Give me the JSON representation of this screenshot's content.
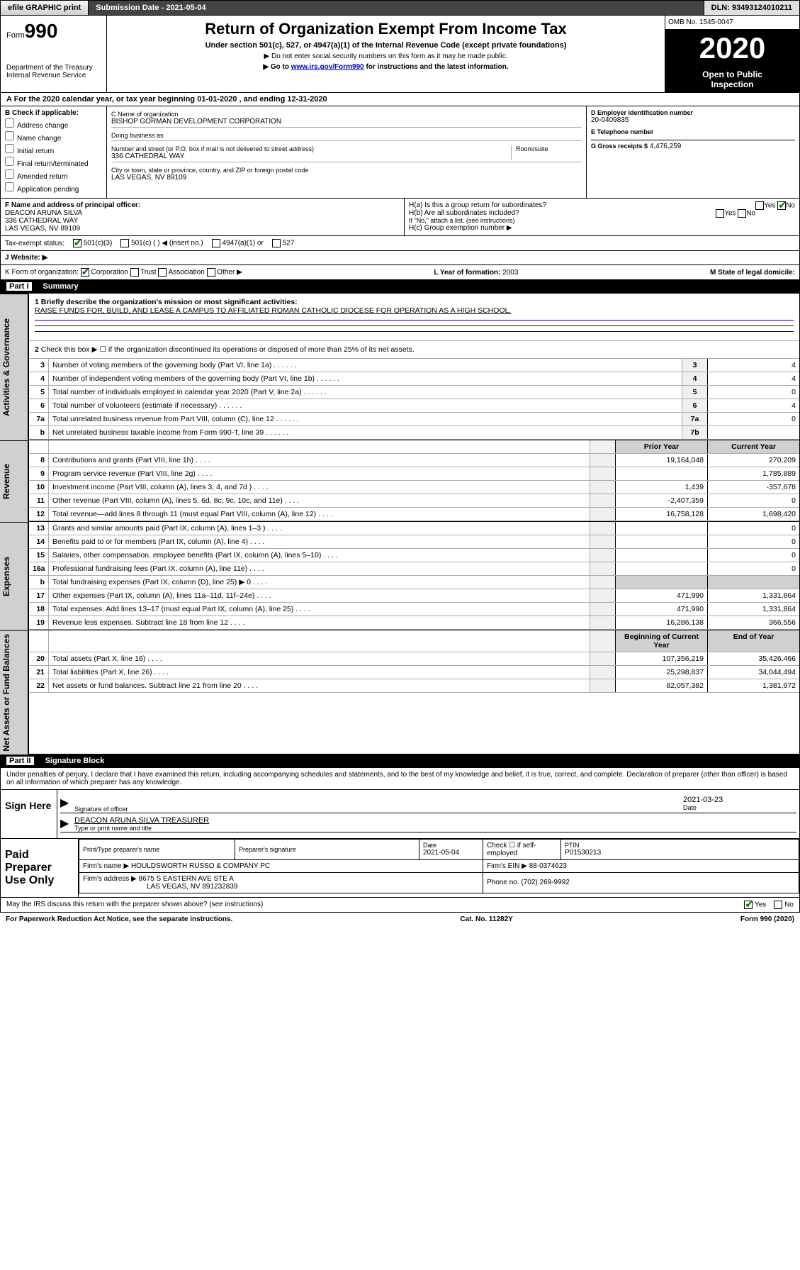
{
  "topbar": {
    "efile_label": "efile GRAPHIC print",
    "submission_label": "Submission Date - 2021-05-04",
    "dln_label": "DLN: 93493124010211"
  },
  "header": {
    "form_word": "Form",
    "form_number": "990",
    "dept1": "Department of the Treasury",
    "dept2": "Internal Revenue Service",
    "title": "Return of Organization Exempt From Income Tax",
    "subtitle": "Under section 501(c), 527, or 4947(a)(1) of the Internal Revenue Code (except private foundations)",
    "note1": "▶ Do not enter social security numbers on this form as it may be made public.",
    "note2_pre": "▶ Go to ",
    "note2_link": "www.irs.gov/Form990",
    "note2_post": " for instructions and the latest information.",
    "omb": "OMB No. 1545-0047",
    "year": "2020",
    "inspect1": "Open to Public",
    "inspect2": "Inspection"
  },
  "period": {
    "text_pre": "A For the 2020 calendar year, or tax year beginning ",
    "begin": "01-01-2020",
    "mid": " , and ending ",
    "end": "12-31-2020"
  },
  "checkif": {
    "header": "B Check if applicable:",
    "addr": "Address change",
    "name": "Name change",
    "initial": "Initial return",
    "final": "Final return/terminated",
    "amended": "Amended return",
    "app": "Application pending"
  },
  "org": {
    "name_lbl": "C Name of organization",
    "name": "BISHOP GORMAN DEVELOPMENT CORPORATION",
    "dba_lbl": "Doing business as",
    "dba": "",
    "addr_lbl": "Number and street (or P.O. box if mail is not delivered to street address)",
    "room_lbl": "Room/suite",
    "addr": "336 CATHEDRAL WAY",
    "city_lbl": "City or town, state or province, country, and ZIP or foreign postal code",
    "city": "LAS VEGAS, NV  89109"
  },
  "colD": {
    "ein_lbl": "D Employer identification number",
    "ein": "20-0409835",
    "tel_lbl": "E Telephone number",
    "tel": "",
    "gross_lbl": "G Gross receipts $",
    "gross": "4,476,259"
  },
  "officer": {
    "lbl": "F Name and address of principal officer:",
    "name": "DEACON ARUNA SILVA",
    "addr1": "336 CATHEDRAL WAY",
    "addr2": "LAS VEGAS, NV  89109"
  },
  "groupH": {
    "ha": "H(a) Is this a group return for subordinates?",
    "hb": "H(b) Are all subordinates included?",
    "hb_note": "If \"No,\" attach a list. (see instructions)",
    "hc": "H(c) Group exemption number ▶",
    "yes": "Yes",
    "no": "No"
  },
  "tax_status": {
    "lbl": "Tax-exempt status:",
    "c3": "501(c)(3)",
    "c_other": "501(c) ( ) ◀ (insert no.)",
    "a1": "4947(a)(1) or",
    "s527": "527"
  },
  "website": {
    "lbl": "J  Website: ▶",
    "val": ""
  },
  "korg": {
    "lbl": "K Form of organization:",
    "corp": "Corporation",
    "trust": "Trust",
    "assoc": "Association",
    "other": "Other ▶",
    "year_lbl": "L Year of formation:",
    "year": "2003",
    "state_lbl": "M State of legal domicile:",
    "state": ""
  },
  "partI": {
    "label": "Part I",
    "title": "Summary",
    "side_gov": "Activities & Governance",
    "side_rev": "Revenue",
    "side_exp": "Expenses",
    "side_net": "Net Assets or Fund Balances",
    "l1_lbl": "1  Briefly describe the organization's mission or most significant activities:",
    "l1_val": "RAISE FUNDS FOR, BUILD, AND LEASE A CAMPUS TO AFFILIATED ROMAN CATHOLIC DIOCESE FOR OPERATION AS A HIGH SCHOOL.",
    "l2": "Check this box ▶ ☐ if the organization discontinued its operations or disposed of more than 25% of its net assets.",
    "lines_gov": [
      {
        "n": "3",
        "d": "Number of voting members of the governing body (Part VI, line 1a)",
        "b": "3",
        "v": "4"
      },
      {
        "n": "4",
        "d": "Number of independent voting members of the governing body (Part VI, line 1b)",
        "b": "4",
        "v": "4"
      },
      {
        "n": "5",
        "d": "Total number of individuals employed in calendar year 2020 (Part V, line 2a)",
        "b": "5",
        "v": "0"
      },
      {
        "n": "6",
        "d": "Total number of volunteers (estimate if necessary)",
        "b": "6",
        "v": "4"
      },
      {
        "n": "7a",
        "d": "Total unrelated business revenue from Part VIII, column (C), line 12",
        "b": "7a",
        "v": "0"
      },
      {
        "n": "b",
        "d": "Net unrelated business taxable income from Form 990-T, line 39",
        "b": "7b",
        "v": ""
      }
    ],
    "hdr_prior": "Prior Year",
    "hdr_current": "Current Year",
    "lines_rev": [
      {
        "n": "8",
        "d": "Contributions and grants (Part VIII, line 1h)",
        "p": "19,164,048",
        "c": "270,209"
      },
      {
        "n": "9",
        "d": "Program service revenue (Part VIII, line 2g)",
        "p": "",
        "c": "1,785,889"
      },
      {
        "n": "10",
        "d": "Investment income (Part VIII, column (A), lines 3, 4, and 7d )",
        "p": "1,439",
        "c": "-357,678"
      },
      {
        "n": "11",
        "d": "Other revenue (Part VIII, column (A), lines 5, 6d, 8c, 9c, 10c, and 11e)",
        "p": "-2,407,359",
        "c": "0"
      },
      {
        "n": "12",
        "d": "Total revenue—add lines 8 through 11 (must equal Part VIII, column (A), line 12)",
        "p": "16,758,128",
        "c": "1,698,420"
      }
    ],
    "lines_exp": [
      {
        "n": "13",
        "d": "Grants and similar amounts paid (Part IX, column (A), lines 1–3 )",
        "p": "",
        "c": "0"
      },
      {
        "n": "14",
        "d": "Benefits paid to or for members (Part IX, column (A), line 4)",
        "p": "",
        "c": "0"
      },
      {
        "n": "15",
        "d": "Salaries, other compensation, employee benefits (Part IX, column (A), lines 5–10)",
        "p": "",
        "c": "0"
      },
      {
        "n": "16a",
        "d": "Professional fundraising fees (Part IX, column (A), line 11e)",
        "p": "",
        "c": "0"
      },
      {
        "n": "b",
        "d": "Total fundraising expenses (Part IX, column (D), line 25) ▶ 0",
        "p": "",
        "c": "",
        "gray": true
      },
      {
        "n": "17",
        "d": "Other expenses (Part IX, column (A), lines 11a–11d, 11f–24e)",
        "p": "471,990",
        "c": "1,331,864"
      },
      {
        "n": "18",
        "d": "Total expenses. Add lines 13–17 (must equal Part IX, column (A), line 25)",
        "p": "471,990",
        "c": "1,331,864"
      },
      {
        "n": "19",
        "d": "Revenue less expenses. Subtract line 18 from line 12",
        "p": "16,286,138",
        "c": "366,556"
      }
    ],
    "hdr_begin": "Beginning of Current Year",
    "hdr_end": "End of Year",
    "lines_net": [
      {
        "n": "20",
        "d": "Total assets (Part X, line 16)",
        "p": "107,356,219",
        "c": "35,426,466"
      },
      {
        "n": "21",
        "d": "Total liabilities (Part X, line 26)",
        "p": "25,298,837",
        "c": "34,044,494"
      },
      {
        "n": "22",
        "d": "Net assets or fund balances. Subtract line 21 from line 20",
        "p": "82,057,382",
        "c": "1,381,972"
      }
    ]
  },
  "partII": {
    "label": "Part II",
    "title": "Signature Block",
    "perjury": "Under penalties of perjury, I declare that I have examined this return, including accompanying schedules and statements, and to the best of my knowledge and belief, it is true, correct, and complete. Declaration of preparer (other than officer) is based on all information of which preparer has any knowledge.",
    "sign_here": "Sign Here",
    "sig_officer": "Signature of officer",
    "sig_date": "2021-03-23",
    "date_lbl": "Date",
    "officer_name": "DEACON ARUNA SILVA  TREASURER",
    "type_name": "Type or print name and title",
    "paid_lbl": "Paid Preparer Use Only",
    "print_name_lbl": "Print/Type preparer's name",
    "print_name": "",
    "prep_sig_lbl": "Preparer's signature",
    "prep_date_lbl": "Date",
    "prep_date": "2021-05-04",
    "self_emp": "Check ☐ if self-employed",
    "ptin_lbl": "PTIN",
    "ptin": "P01530213",
    "firm_name_lbl": "Firm's name   ▶",
    "firm_name": "HOULDSWORTH RUSSO & COMPANY PC",
    "firm_ein_lbl": "Firm's EIN ▶",
    "firm_ein": "88-0374623",
    "firm_addr_lbl": "Firm's address ▶",
    "firm_addr1": "8675 S EASTERN AVE STE A",
    "firm_addr2": "LAS VEGAS, NV  891232839",
    "phone_lbl": "Phone no.",
    "phone": "(702) 269-9992"
  },
  "discuss": {
    "text": "May the IRS discuss this return with the preparer shown above? (see instructions)",
    "yes": "Yes",
    "no": "No"
  },
  "footer": {
    "left": "For Paperwork Reduction Act Notice, see the separate instructions.",
    "mid": "Cat. No. 11282Y",
    "right": "Form 990 (2020)"
  }
}
